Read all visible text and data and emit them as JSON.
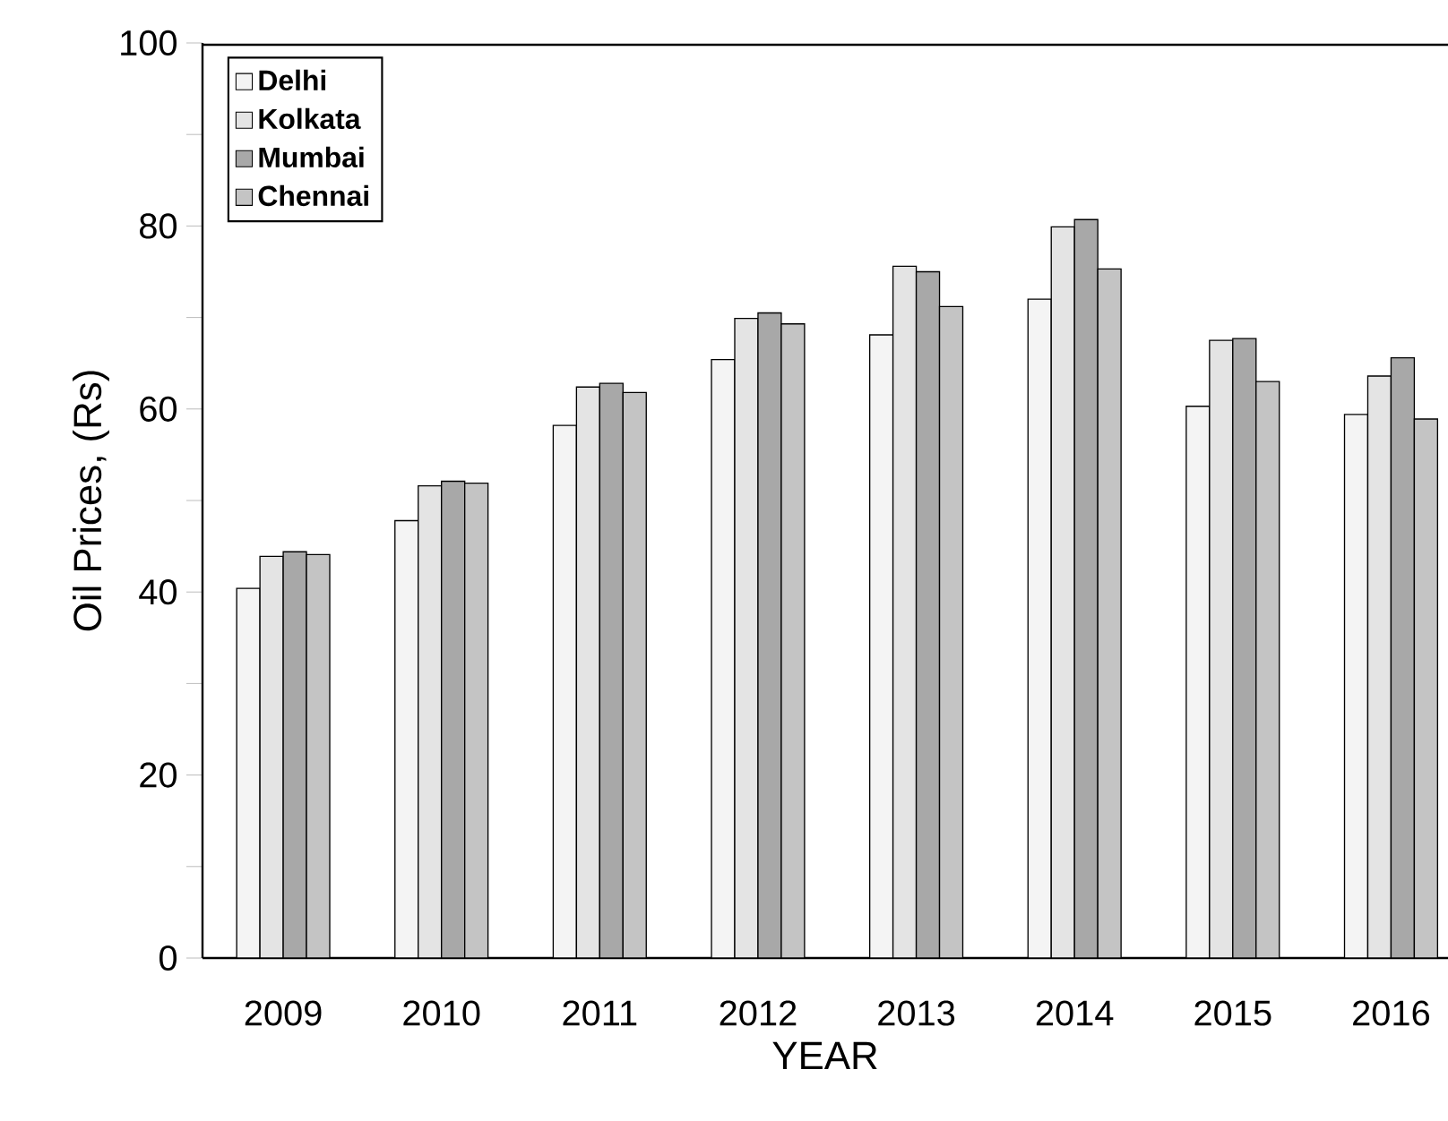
{
  "chart_data": {
    "type": "bar",
    "xlabel": "YEAR",
    "ylabel": "Oil Prices, (Rs)",
    "categories": [
      "2009",
      "2010",
      "2011",
      "2012",
      "2013",
      "2014",
      "2015",
      "2016"
    ],
    "series": [
      {
        "name": "Delhi",
        "color": "#f4f4f4",
        "values": [
          40.4,
          47.8,
          58.2,
          65.4,
          68.1,
          72.0,
          60.3,
          59.4
        ]
      },
      {
        "name": "Kolkata",
        "color": "#e4e4e4",
        "values": [
          43.9,
          51.6,
          62.4,
          69.9,
          75.6,
          79.9,
          67.5,
          63.6
        ]
      },
      {
        "name": "Mumbai",
        "color": "#a8a8a8",
        "values": [
          44.4,
          52.1,
          62.8,
          70.5,
          75.0,
          80.7,
          67.7,
          65.6
        ]
      },
      {
        "name": "Chennai",
        "color": "#c4c4c4",
        "values": [
          44.1,
          51.9,
          61.8,
          69.3,
          71.2,
          75.3,
          63.0,
          58.9
        ]
      }
    ],
    "ylim": [
      0,
      100
    ],
    "yticks": [
      0,
      {
        "value": 10,
        "label": null
      },
      20,
      {
        "value": 30,
        "label": null
      },
      40,
      {
        "value": 50,
        "label": null
      },
      60,
      {
        "value": 70,
        "label": null
      },
      80,
      {
        "value": 90,
        "label": null
      },
      100
    ],
    "legend": "top left"
  }
}
